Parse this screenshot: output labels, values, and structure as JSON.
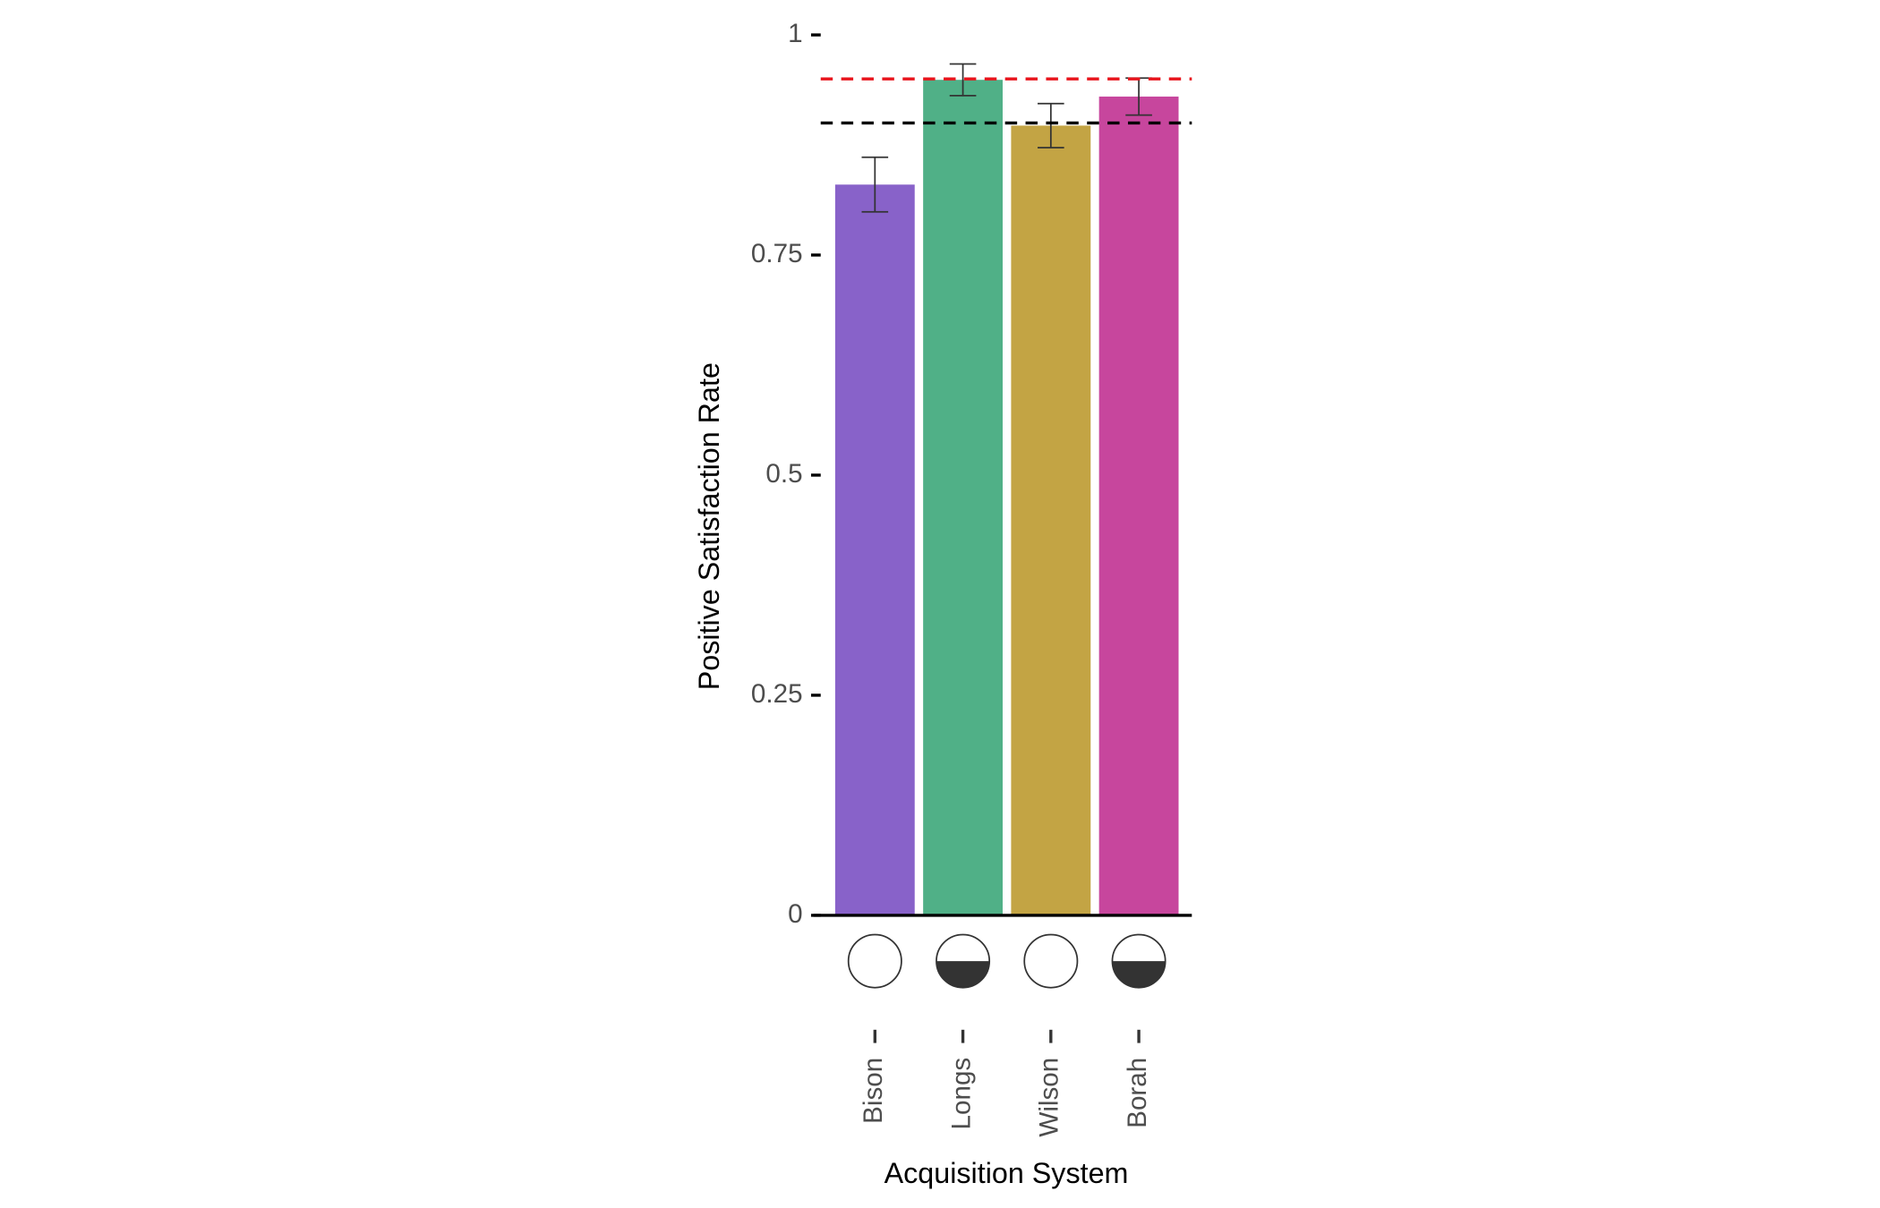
{
  "chart_data": {
    "type": "bar",
    "x_label": "Acquisition System",
    "y_label": "Positive Satisfaction Rate",
    "categories": [
      "Bison",
      "Longs",
      "Wilson",
      "Borah"
    ],
    "values": [
      0.83,
      0.949,
      0.897,
      0.93
    ],
    "errors": [
      0.031,
      0.018,
      0.025,
      0.021
    ],
    "colors": [
      "#8862c9",
      "#50b087",
      "#c3a444",
      "#c7469d"
    ],
    "marker_half_filled": [
      false,
      true,
      false,
      true
    ],
    "hlines": [
      {
        "value": 0.95,
        "color": "#e8141c"
      },
      {
        "value": 0.9,
        "color": "#000000"
      }
    ],
    "ylim": [
      0,
      1
    ],
    "yticks": [
      0,
      0.25,
      0.5,
      0.75,
      1
    ],
    "grid": false
  }
}
